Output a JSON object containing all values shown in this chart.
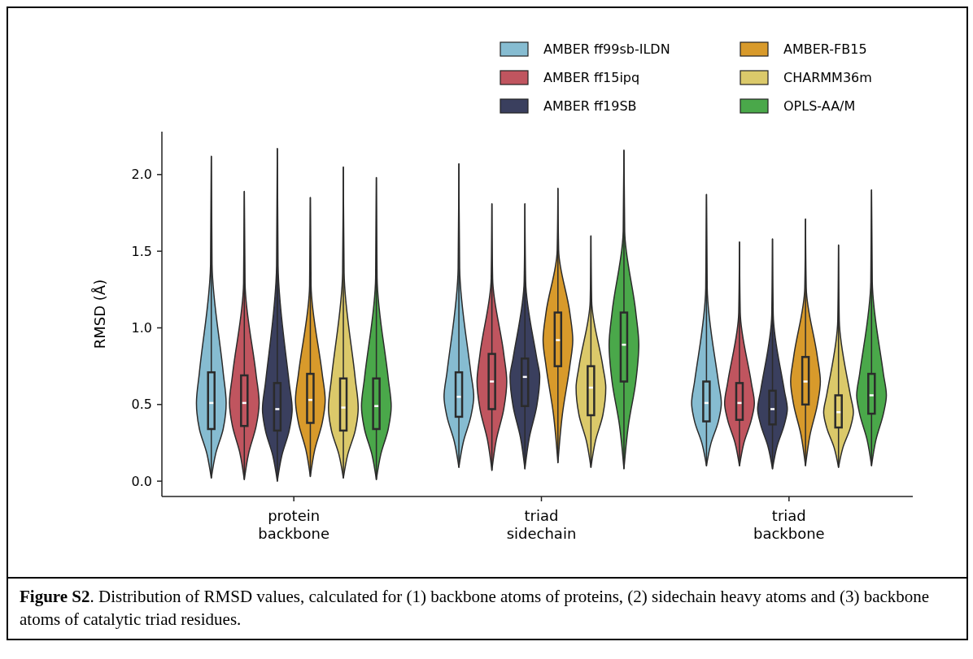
{
  "chart_data": {
    "type": "box",
    "ylabel": "RMSD (Å)",
    "categories": [
      "protein\nbackbone",
      "triad\nsidechain",
      "triad\nbackbone"
    ],
    "ylim": [
      -0.1,
      2.28
    ],
    "yticks": [
      {
        "value": 0,
        "label": "0.0"
      },
      0.5,
      {
        "value": 1,
        "label": "1.0"
      },
      1.5,
      {
        "value": 2,
        "label": "2.0"
      }
    ],
    "legend": "top right",
    "grid": false,
    "series": [
      {
        "name": "AMBER ff99sb-ILDN",
        "color": "#86bcd1",
        "boxes": [
          {
            "low": 0.02,
            "q1": 0.34,
            "median": 0.51,
            "q3": 0.71,
            "high": 2.12
          },
          {
            "low": 0.09,
            "q1": 0.42,
            "median": 0.55,
            "q3": 0.71,
            "high": 2.07
          },
          {
            "low": 0.1,
            "q1": 0.39,
            "median": 0.51,
            "q3": 0.65,
            "high": 1.87
          }
        ]
      },
      {
        "name": "AMBER ff15ipq",
        "color": "#c0555f",
        "boxes": [
          {
            "low": 0.01,
            "q1": 0.36,
            "median": 0.51,
            "q3": 0.69,
            "high": 1.89
          },
          {
            "low": 0.07,
            "q1": 0.47,
            "median": 0.65,
            "q3": 0.83,
            "high": 1.81
          },
          {
            "low": 0.1,
            "q1": 0.4,
            "median": 0.51,
            "q3": 0.64,
            "high": 1.56
          }
        ]
      },
      {
        "name": "AMBER ff19SB",
        "color": "#3a3f5e",
        "boxes": [
          {
            "low": 0.0,
            "q1": 0.33,
            "median": 0.47,
            "q3": 0.64,
            "high": 2.17
          },
          {
            "low": 0.08,
            "q1": 0.49,
            "median": 0.68,
            "q3": 0.8,
            "high": 1.81
          },
          {
            "low": 0.08,
            "q1": 0.37,
            "median": 0.47,
            "q3": 0.59,
            "high": 1.58
          }
        ]
      },
      {
        "name": "AMBER-FB15",
        "color": "#d89a2b",
        "boxes": [
          {
            "low": 0.03,
            "q1": 0.38,
            "median": 0.53,
            "q3": 0.7,
            "high": 1.85
          },
          {
            "low": 0.12,
            "q1": 0.75,
            "median": 0.92,
            "q3": 1.1,
            "high": 1.91
          },
          {
            "low": 0.1,
            "q1": 0.5,
            "median": 0.65,
            "q3": 0.81,
            "high": 1.71
          }
        ]
      },
      {
        "name": "CHARMM36m",
        "color": "#dbc96a",
        "boxes": [
          {
            "low": 0.02,
            "q1": 0.33,
            "median": 0.48,
            "q3": 0.67,
            "high": 2.05
          },
          {
            "low": 0.09,
            "q1": 0.43,
            "median": 0.61,
            "q3": 0.75,
            "high": 1.6
          },
          {
            "low": 0.09,
            "q1": 0.35,
            "median": 0.45,
            "q3": 0.56,
            "high": 1.54
          }
        ]
      },
      {
        "name": "OPLS-AA/M",
        "color": "#4aa84a",
        "boxes": [
          {
            "low": 0.01,
            "q1": 0.34,
            "median": 0.49,
            "q3": 0.67,
            "high": 1.98
          },
          {
            "low": 0.08,
            "q1": 0.65,
            "median": 0.89,
            "q3": 1.1,
            "high": 2.16
          },
          {
            "low": 0.1,
            "q1": 0.44,
            "median": 0.56,
            "q3": 0.7,
            "high": 1.9
          }
        ]
      }
    ],
    "annotations": [
      "Figure S2. Distribution of RMSD values, calculated for (1) backbone atoms of proteins, (2) sidechain heavy atoms and (3) backbone atoms of catalytic triad residues."
    ]
  }
}
